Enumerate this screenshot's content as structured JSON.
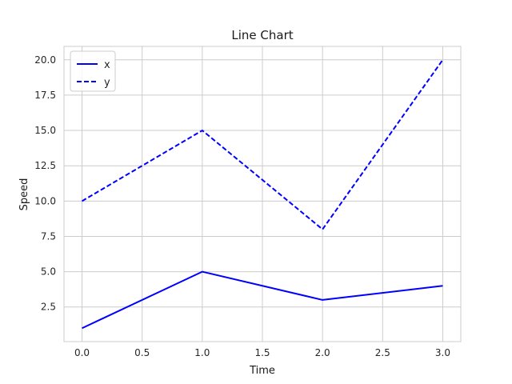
{
  "chart_data": {
    "type": "line",
    "title": "Line Chart",
    "xlabel": "Time",
    "ylabel": "Speed",
    "xlim": [
      -0.15,
      3.15
    ],
    "ylim": [
      0.05,
      20.95
    ],
    "xticks": [
      0.0,
      0.5,
      1.0,
      1.5,
      2.0,
      2.5,
      3.0
    ],
    "xtick_labels": [
      "0.0",
      "0.5",
      "1.0",
      "1.5",
      "2.0",
      "2.5",
      "3.0"
    ],
    "yticks": [
      2.5,
      5.0,
      7.5,
      10.0,
      12.5,
      15.0,
      17.5,
      20.0
    ],
    "ytick_labels": [
      "2.5",
      "5.0",
      "7.5",
      "10.0",
      "12.5",
      "15.0",
      "17.5",
      "20.0"
    ],
    "grid": true,
    "legend_position": "top-left",
    "x": [
      0,
      1,
      2,
      3
    ],
    "series": [
      {
        "name": "x",
        "values": [
          1,
          5,
          3,
          4
        ],
        "style": "solid",
        "color": "#0000ff"
      },
      {
        "name": "y",
        "values": [
          10,
          15,
          8,
          20
        ],
        "style": "dashed",
        "color": "#0000ff"
      }
    ]
  }
}
